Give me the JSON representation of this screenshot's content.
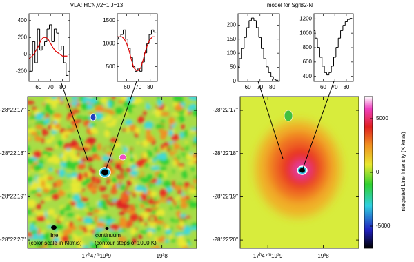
{
  "titles": [
    "VLA: HCN,v2=1 J=13",
    "model for SgrB2-N"
  ],
  "chart_data": [
    {
      "type": "line",
      "x": [
        52,
        54,
        56,
        58,
        60,
        62,
        64,
        66,
        68,
        70,
        72,
        74,
        76,
        78,
        80,
        82,
        84
      ],
      "series": [
        {
          "color": "#000000",
          "step": true,
          "values": [
            0,
            -200,
            150,
            -100,
            300,
            50,
            100,
            150,
            300,
            350,
            150,
            300,
            250,
            50,
            100,
            -100,
            -250
          ]
        },
        {
          "color": "#e00000",
          "step": false,
          "values": [
            -50,
            -30,
            0,
            50,
            100,
            170,
            200,
            200,
            180,
            130,
            80,
            40,
            20,
            0,
            -20,
            -20,
            -20
          ]
        }
      ],
      "xlim": [
        52,
        86
      ],
      "ylim": [
        -320,
        480
      ],
      "xticks": [
        60,
        70,
        80
      ],
      "yticks": [
        -200,
        0,
        200,
        400
      ]
    },
    {
      "type": "line",
      "x": [
        52,
        54,
        56,
        58,
        60,
        62,
        64,
        66,
        68,
        70,
        72,
        74,
        76,
        78,
        80,
        82,
        84
      ],
      "series": [
        {
          "color": "#000000",
          "step": true,
          "values": [
            1100,
            1150,
            1200,
            1300,
            1100,
            900,
            700,
            500,
            400,
            450,
            400,
            600,
            800,
            1000,
            1200,
            1300,
            1250
          ]
        },
        {
          "color": "#e00000",
          "step": false,
          "values": [
            1150,
            1150,
            1150,
            1100,
            1000,
            850,
            650,
            480,
            420,
            420,
            480,
            650,
            850,
            1000,
            1100,
            1150,
            1150
          ]
        }
      ],
      "xlim": [
        52,
        86
      ],
      "ylim": [
        180,
        1650
      ],
      "xticks": [
        60,
        70,
        80
      ],
      "yticks": [
        500,
        1000,
        1500
      ]
    },
    {
      "type": "line",
      "x": [
        52,
        54,
        56,
        58,
        60,
        62,
        64,
        66,
        68,
        70,
        72,
        74,
        76,
        78,
        80,
        82,
        84
      ],
      "series": [
        {
          "color": "#000000",
          "step": true,
          "values": [
            52,
            81,
            117,
            156,
            191,
            216,
            225,
            216,
            191,
            156,
            117,
            81,
            52,
            31,
            17,
            8,
            4
          ]
        }
      ],
      "xlim": [
        52,
        86
      ],
      "ylim": [
        0,
        240
      ],
      "xticks": [
        60,
        70,
        80
      ],
      "yticks": [
        0,
        50,
        100,
        150,
        200
      ]
    },
    {
      "type": "line",
      "x": [
        52,
        54,
        56,
        58,
        60,
        62,
        64,
        66,
        68,
        70,
        72,
        74,
        76,
        78,
        80,
        82,
        84
      ],
      "series": [
        {
          "color": "#000000",
          "step": true,
          "values": [
            1036,
            932,
            804,
            666,
            542,
            452,
            420,
            452,
            542,
            666,
            804,
            932,
            1036,
            1110,
            1160,
            1192,
            1206
          ]
        }
      ],
      "xlim": [
        52,
        86
      ],
      "ylim": [
        330,
        1270
      ],
      "xticks": [
        60,
        70,
        80
      ],
      "yticks": [
        400,
        600,
        800,
        1000,
        1200
      ]
    }
  ],
  "maps": [
    {
      "xlim": [
        20.005,
        19.747
      ],
      "ylim": [
        16.68,
        20.19
      ],
      "dec_ticks": [
        {
          "value": 17,
          "label": "-28°22'17''"
        },
        {
          "value": 18,
          "label": "-28°22'18''"
        },
        {
          "value": 19,
          "label": "-28°22'19''"
        },
        {
          "value": 20,
          "label": "-28°22'20''"
        }
      ],
      "ra_ticks": [
        {
          "value": 19.9,
          "label": "17h47m19s9"
        },
        {
          "value": 19.8,
          "label": "19s8"
        }
      ],
      "annotations": [
        "line",
        "continuum",
        "(color scale in Kkm/s)",
        "(contour steps of 1000 K)"
      ]
    },
    {
      "xlim": [
        19.95,
        19.736
      ],
      "ylim": [
        16.68,
        20.19
      ],
      "dec_ticks": [
        {
          "value": 17,
          "label": "-28°22'17''"
        },
        {
          "value": 18,
          "label": "-28°22'18''"
        },
        {
          "value": 19,
          "label": "-28°22'19''"
        },
        {
          "value": 20,
          "label": "-28°22'20''"
        }
      ],
      "ra_ticks": [
        {
          "value": 19.9,
          "label": "17h47m19s9"
        },
        {
          "value": 19.8,
          "label": "19s8"
        }
      ]
    }
  ],
  "colorbar": {
    "label": "Integrated Line Intensity (K km/s)",
    "ylim": [
      -7050,
      7050
    ],
    "yticks": [
      5000,
      0,
      -5000
    ]
  }
}
